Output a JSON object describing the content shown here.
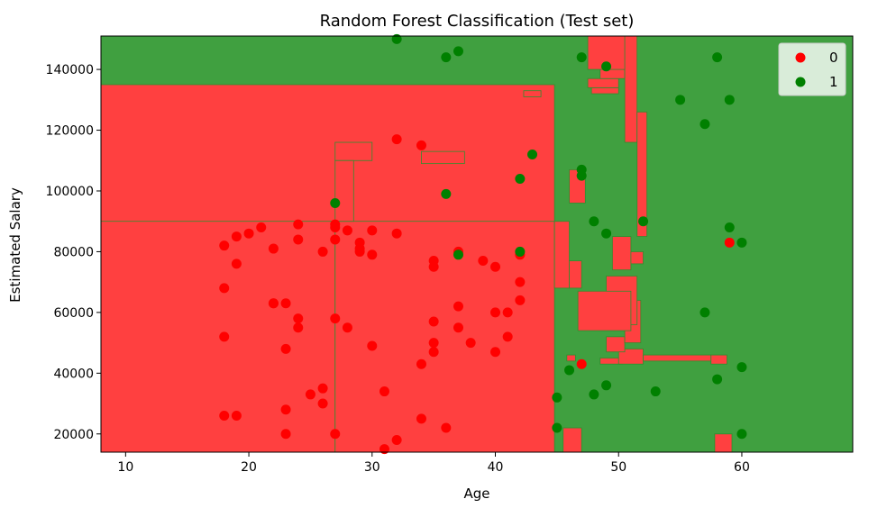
{
  "chart_data": {
    "type": "scatter",
    "title": "Random Forest Classification (Test set)",
    "xlabel": "Age",
    "ylabel": "Estimated Salary",
    "xlim": [
      8,
      69
    ],
    "ylim": [
      14000,
      151000
    ],
    "xticks": [
      10,
      20,
      30,
      40,
      50,
      60
    ],
    "yticks": [
      20000,
      40000,
      60000,
      80000,
      100000,
      120000,
      140000
    ],
    "legend_position": "top-right",
    "grid": false,
    "colors": {
      "class0_point": "#ff0000",
      "class1_point": "#008000",
      "class0_region": "#ff4040",
      "class1_region": "#40a040"
    },
    "regions_class0": [
      [
        8,
        14000,
        44.8,
        135000
      ],
      [
        8,
        14000,
        27,
        90000
      ],
      [
        27,
        14000,
        44.8,
        90000
      ],
      [
        44.8,
        68000,
        46,
        90000
      ],
      [
        46,
        68000,
        47,
        77000
      ],
      [
        27,
        110000,
        30,
        116000
      ],
      [
        27,
        90000,
        28.5,
        110000
      ],
      [
        34,
        109000,
        37.5,
        113000
      ],
      [
        42.3,
        131000,
        43.7,
        133000
      ],
      [
        46,
        96000,
        47.3,
        107000
      ],
      [
        45.5,
        14000,
        47,
        22000
      ],
      [
        45.8,
        44000,
        46.5,
        46000
      ],
      [
        47.8,
        132000,
        50,
        134000
      ],
      [
        47.5,
        134000,
        50,
        137000
      ],
      [
        48.5,
        137000,
        50.5,
        141000
      ],
      [
        48.5,
        43000,
        50.3,
        45000
      ],
      [
        50,
        43000,
        52,
        48000
      ],
      [
        52,
        44000,
        57.5,
        46000
      ],
      [
        57.5,
        43000,
        58.8,
        46000
      ],
      [
        49,
        47000,
        50.5,
        52000
      ],
      [
        50.5,
        50000,
        51.8,
        64000
      ],
      [
        49,
        56000,
        51.5,
        72000
      ],
      [
        49.5,
        74000,
        51,
        85000
      ],
      [
        51,
        76000,
        52,
        80000
      ],
      [
        47.5,
        151000,
        50.7,
        140000
      ],
      [
        50.5,
        116000,
        51.5,
        151000
      ],
      [
        51.5,
        85000,
        52.3,
        126000
      ],
      [
        46.7,
        54000,
        51,
        67000
      ],
      [
        57.8,
        14000,
        59.2,
        20000
      ]
    ],
    "series": [
      {
        "name": "0",
        "x": [
          18,
          19,
          20,
          21,
          22,
          24,
          24,
          26,
          27,
          27,
          28,
          29,
          30,
          32,
          18,
          19,
          22,
          24,
          27,
          29,
          30,
          18,
          22,
          23,
          24,
          27,
          28,
          29,
          18,
          19,
          23,
          23,
          23,
          25,
          26,
          26,
          27,
          30,
          31,
          31,
          32,
          34,
          34,
          35,
          35,
          35,
          35,
          35,
          36,
          37,
          37,
          37,
          38,
          39,
          40,
          40,
          40,
          41,
          41,
          42,
          42,
          42,
          32,
          34,
          47,
          59
        ],
        "y": [
          82000,
          85000,
          86000,
          88000,
          81000,
          89000,
          84000,
          80000,
          89000,
          84000,
          87000,
          83000,
          87000,
          86000,
          68000,
          76000,
          63000,
          58000,
          58000,
          80000,
          79000,
          52000,
          63000,
          63000,
          55000,
          88000,
          55000,
          81000,
          26000,
          26000,
          48000,
          28000,
          20000,
          33000,
          35000,
          30000,
          20000,
          49000,
          34000,
          15000,
          18000,
          43000,
          25000,
          77000,
          75000,
          57000,
          50000,
          47000,
          22000,
          80000,
          62000,
          55000,
          50000,
          77000,
          75000,
          60000,
          47000,
          60000,
          52000,
          70000,
          64000,
          79000,
          117000,
          115000,
          43000,
          83000
        ]
      },
      {
        "name": "1",
        "x": [
          32,
          36,
          37,
          47,
          49,
          58,
          55,
          57,
          59,
          43,
          47,
          47,
          42,
          36,
          27,
          48,
          49,
          52,
          59,
          60,
          37,
          42,
          57,
          46,
          58,
          60,
          45,
          48,
          49,
          53,
          45,
          60
        ],
        "y": [
          150000,
          144000,
          146000,
          144000,
          141000,
          144000,
          130000,
          122000,
          130000,
          112000,
          107000,
          105000,
          104000,
          99000,
          96000,
          90000,
          86000,
          90000,
          88000,
          83000,
          79000,
          80000,
          60000,
          41000,
          38000,
          42000,
          32000,
          33000,
          36000,
          34000,
          22000,
          20000
        ]
      }
    ],
    "legend": [
      "0",
      "1"
    ]
  }
}
